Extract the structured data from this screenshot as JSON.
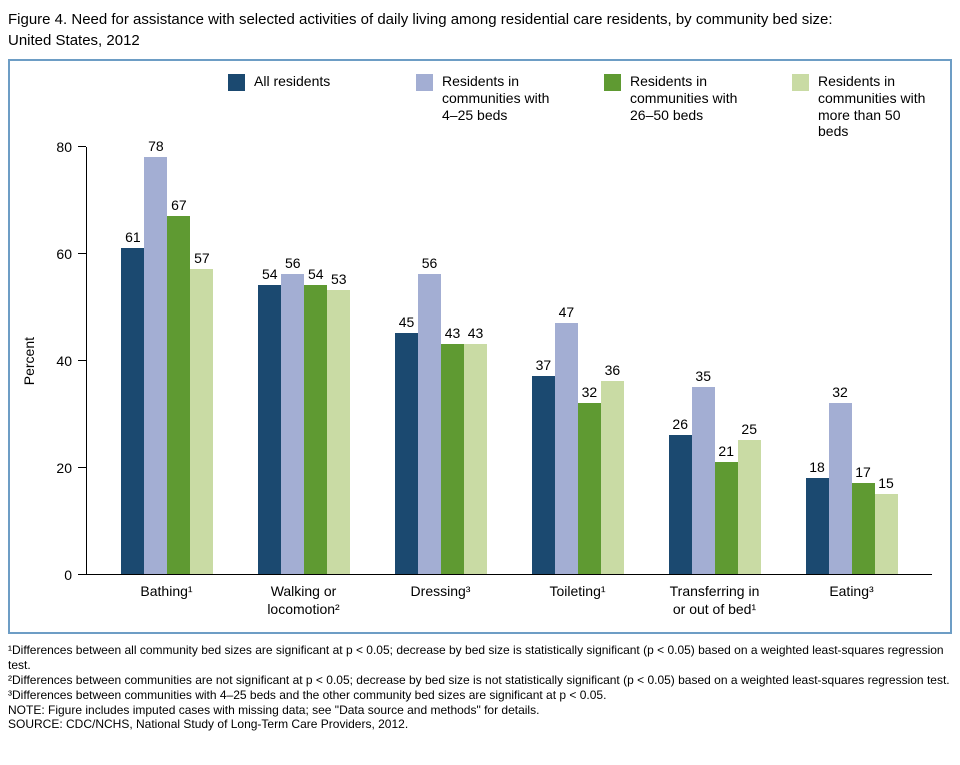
{
  "chart_data": {
    "type": "bar",
    "title": "Figure 4. Need for assistance with selected activities of daily living among residential care residents, by community bed size: United States, 2012",
    "categories": [
      "Bathing¹",
      "Walking or locomotion²",
      "Dressing³",
      "Toileting¹",
      "Transferring in or out of bed¹",
      "Eating³"
    ],
    "series": [
      {
        "name": "All residents",
        "color": "#1b4970",
        "values": [
          61,
          54,
          45,
          37,
          26,
          18
        ]
      },
      {
        "name": "Residents in communities with 4–25 beds",
        "color": "#a3aed3",
        "values": [
          78,
          56,
          56,
          47,
          35,
          32
        ]
      },
      {
        "name": "Residents in communities with 26–50 beds",
        "color": "#5f9a32",
        "values": [
          67,
          54,
          43,
          32,
          21,
          17
        ]
      },
      {
        "name": "Residents in communities with more than 50 beds",
        "color": "#c9dba4",
        "values": [
          57,
          53,
          43,
          36,
          25,
          15
        ]
      }
    ],
    "xlabel": "",
    "ylabel": "Percent",
    "ylim": [
      0,
      80
    ],
    "yticks": [
      0,
      20,
      40,
      60,
      80
    ],
    "grid": false,
    "legend_position": "top",
    "panel_border_color": "#6d9dc5"
  },
  "footnotes": [
    "¹Differences between all community bed sizes are significant at p < 0.05; decrease by bed size is statistically significant (p < 0.05) based on a weighted least-squares regression test.",
    "²Differences between communities are not significant at p < 0.05; decrease by bed size is not statistically significant (p < 0.05) based on a weighted least-squares regression test.",
    "³Differences between communities with 4–25 beds and the other community bed sizes are significant at p < 0.05.",
    "NOTE: Figure includes imputed cases with missing data; see \"Data source and methods\" for details.",
    "SOURCE: CDC/NCHS, National Study of Long-Term Care Providers, 2012."
  ]
}
